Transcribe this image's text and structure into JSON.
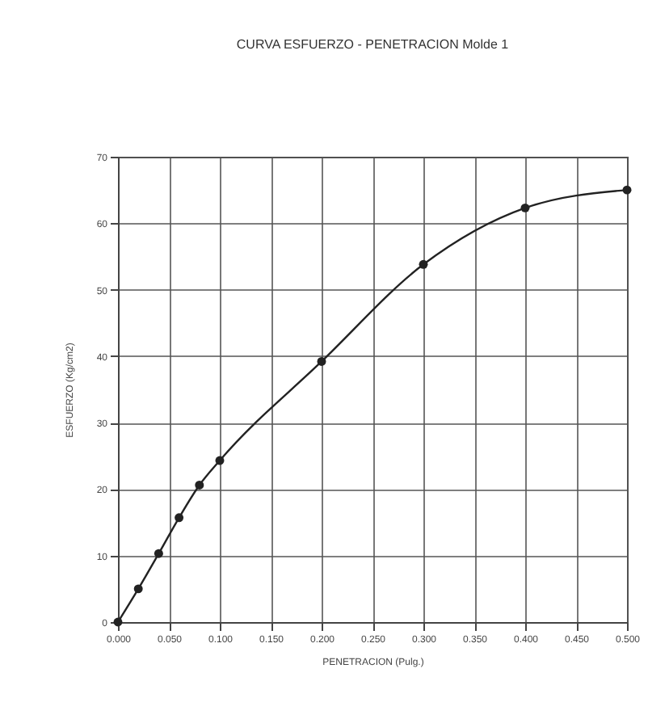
{
  "chart_data": {
    "type": "line",
    "title": "CURVA ESFUERZO - PENETRACION  Molde 1",
    "xlabel": "PENETRACION (Pulg.)",
    "ylabel": "ESFUERZO (Kg/cm2)",
    "x": [
      0,
      0.02,
      0.04,
      0.06,
      0.08,
      0.1,
      0.2,
      0.3,
      0.4,
      0.5
    ],
    "series": [
      {
        "color": "#222222",
        "values": [
          0,
          5,
          10.3,
          15.7,
          20.6,
          24.3,
          39.2,
          53.8,
          62.3,
          65
        ]
      }
    ],
    "xlim": [
      0,
      0.5
    ],
    "xticks": [
      {
        "value": 0,
        "label": "0.000"
      },
      {
        "value": 0.05,
        "label": "0.050"
      },
      {
        "value": 0.1,
        "label": "0.100"
      },
      {
        "value": 0.15,
        "label": "0.150"
      },
      {
        "value": 0.2,
        "label": "0.200"
      },
      {
        "value": 0.25,
        "label": "0.250"
      },
      {
        "value": 0.3,
        "label": "0.300"
      },
      {
        "value": 0.35,
        "label": "0.350"
      },
      {
        "value": 0.4,
        "label": "0.400"
      },
      {
        "value": 0.45,
        "label": "0.450"
      },
      {
        "value": 0.5,
        "label": "0.500"
      }
    ],
    "ylim": [
      0,
      70
    ],
    "yticks": [
      0,
      10,
      20,
      30,
      40,
      50,
      60,
      70
    ],
    "grid": true,
    "marker": "circle",
    "line_style": "solid"
  }
}
